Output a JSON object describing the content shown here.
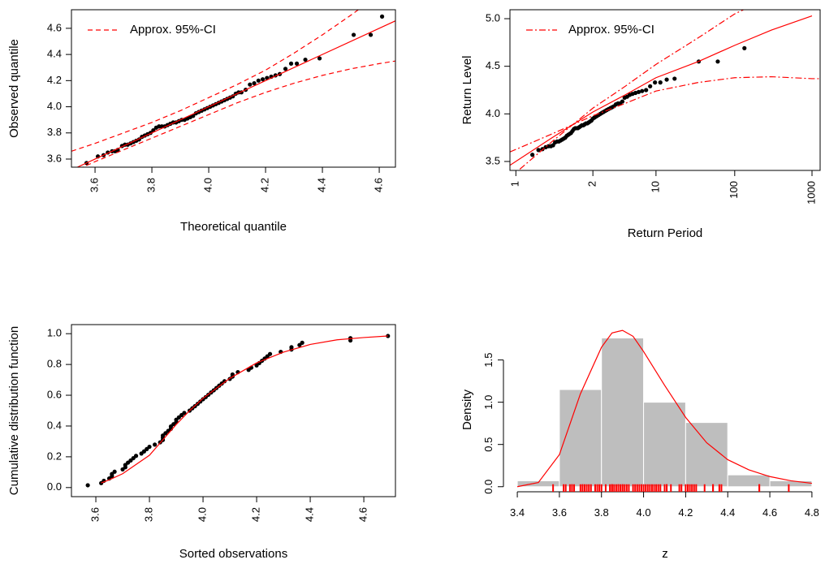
{
  "chart_data": [
    {
      "type": "scatter",
      "xlabel": "Theoretical quantile",
      "ylabel": "Observed quantile",
      "xlim": [
        3.517,
        4.657
      ],
      "ylim": [
        3.538,
        4.742
      ],
      "xticks": [
        3.6,
        3.8,
        {
          "value": 4,
          "label": "4.0"
        },
        4.2,
        4.4,
        4.6
      ],
      "yticks": [
        3.6,
        3.8,
        {
          "value": 4,
          "label": "4.0"
        },
        4.2,
        4.4,
        4.6
      ],
      "legend": "topleft",
      "series": [
        {
          "kind": "points",
          "color": "#000000",
          "x": [
            3.57,
            3.61,
            3.63,
            3.645,
            3.66,
            3.67,
            3.68,
            3.695,
            3.705,
            3.715,
            3.725,
            3.735,
            3.745,
            3.755,
            3.765,
            3.775,
            3.785,
            3.795,
            3.805,
            3.815,
            3.825,
            3.835,
            3.845,
            3.855,
            3.865,
            3.875,
            3.885,
            3.895,
            3.905,
            3.915,
            3.925,
            3.935,
            3.945,
            3.955,
            3.965,
            3.975,
            3.985,
            3.995,
            4.005,
            4.015,
            4.025,
            4.035,
            4.045,
            4.055,
            4.065,
            4.075,
            4.085,
            4.095,
            4.105,
            4.115,
            4.13,
            4.145,
            4.16,
            4.175,
            4.19,
            4.205,
            4.22,
            4.235,
            4.25,
            4.27,
            4.29,
            4.31,
            4.34,
            4.39,
            4.51,
            4.57,
            4.61
          ],
          "values": [
            3.57,
            3.62,
            3.63,
            3.65,
            3.66,
            3.66,
            3.67,
            3.7,
            3.71,
            3.71,
            3.72,
            3.73,
            3.74,
            3.75,
            3.77,
            3.78,
            3.79,
            3.8,
            3.82,
            3.84,
            3.85,
            3.85,
            3.85,
            3.86,
            3.87,
            3.88,
            3.88,
            3.89,
            3.9,
            3.9,
            3.91,
            3.92,
            3.93,
            3.95,
            3.96,
            3.97,
            3.98,
            3.99,
            4.0,
            4.01,
            4.02,
            4.03,
            4.04,
            4.05,
            4.06,
            4.07,
            4.08,
            4.1,
            4.11,
            4.11,
            4.13,
            4.17,
            4.18,
            4.2,
            4.21,
            4.22,
            4.23,
            4.24,
            4.25,
            4.29,
            4.33,
            4.33,
            4.36,
            4.37,
            4.55,
            4.55,
            4.69
          ]
        },
        {
          "kind": "line",
          "style": "solid",
          "color": "#ff0000",
          "x": [
            3.517,
            4.657
          ],
          "values": [
            3.517,
            4.657
          ]
        },
        {
          "name": "Approx. 95%-CI",
          "kind": "line",
          "style": "dashed",
          "color": "#ff0000",
          "x": [
            3.517,
            3.6,
            3.7,
            3.8,
            3.9,
            4.0,
            4.1,
            4.2,
            4.3,
            4.4,
            4.5,
            4.55
          ],
          "values": [
            3.66,
            3.72,
            3.8,
            3.88,
            3.97,
            4.07,
            4.17,
            4.28,
            4.41,
            4.55,
            4.7,
            4.78
          ]
        },
        {
          "kind": "line",
          "style": "dashed",
          "color": "#ff0000",
          "x": [
            3.517,
            3.6,
            3.7,
            3.8,
            3.9,
            4.0,
            4.1,
            4.2,
            4.3,
            4.4,
            4.5,
            4.6,
            4.657
          ],
          "values": [
            3.5,
            3.58,
            3.67,
            3.76,
            3.85,
            3.94,
            4.03,
            4.11,
            4.18,
            4.24,
            4.29,
            4.33,
            4.35
          ]
        }
      ]
    },
    {
      "type": "scatter",
      "xlabel": "Return Period",
      "ylabel": "Return Level",
      "xscale": "log",
      "xlim": [
        0.1213,
        1274
      ],
      "ylim": [
        3.406,
        5.094
      ],
      "xticks": [
        {
          "value": 0.1448,
          "label": "1"
        },
        {
          "value": 1.4427,
          "label": "2"
        },
        {
          "value": 9.4912,
          "label": "10"
        },
        {
          "value": 99.499,
          "label": "100"
        },
        {
          "value": 999.5,
          "label": "1000"
        }
      ],
      "yticks": [
        3.5,
        {
          "value": 4,
          "label": "4.0"
        },
        4.5,
        {
          "value": 5,
          "label": "5.0"
        }
      ],
      "legend": "topleft",
      "series": [
        {
          "kind": "points",
          "color": "#000000",
          "x": [
            0.237,
            0.284,
            0.32,
            0.353,
            0.383,
            0.412,
            0.44,
            0.467,
            0.495,
            0.522,
            0.549,
            0.576,
            0.604,
            0.633,
            0.662,
            0.691,
            0.721,
            0.752,
            0.784,
            0.817,
            0.851,
            0.886,
            0.922,
            0.96,
            0.999,
            1.04,
            1.083,
            1.127,
            1.173,
            1.222,
            1.273,
            1.326,
            1.383,
            1.443,
            1.506,
            1.573,
            1.644,
            1.719,
            1.8,
            1.885,
            1.977,
            2.076,
            2.181,
            2.296,
            2.424,
            2.56,
            2.706,
            2.869,
            3.052,
            3.25,
            3.477,
            3.723,
            4.008,
            4.336,
            4.708,
            5.14,
            5.66,
            6.27,
            7.062,
            7.97,
            9.21,
            10.81,
            13.07,
            16.53,
            34,
            60,
            133
          ],
          "values": [
            3.57,
            3.62,
            3.63,
            3.65,
            3.66,
            3.66,
            3.67,
            3.7,
            3.71,
            3.71,
            3.72,
            3.73,
            3.74,
            3.75,
            3.77,
            3.78,
            3.79,
            3.8,
            3.82,
            3.84,
            3.85,
            3.85,
            3.85,
            3.86,
            3.87,
            3.88,
            3.88,
            3.89,
            3.9,
            3.9,
            3.91,
            3.92,
            3.93,
            3.95,
            3.96,
            3.97,
            3.98,
            3.99,
            4.0,
            4.01,
            4.02,
            4.03,
            4.04,
            4.05,
            4.06,
            4.07,
            4.08,
            4.1,
            4.11,
            4.11,
            4.13,
            4.17,
            4.18,
            4.2,
            4.21,
            4.22,
            4.23,
            4.24,
            4.25,
            4.29,
            4.33,
            4.33,
            4.36,
            4.37,
            4.55,
            4.55,
            4.69
          ]
        },
        {
          "kind": "line",
          "style": "solid",
          "color": "#ff0000",
          "x": [
            0.1213,
            0.428,
            1.4427,
            3.79,
            9.49,
            33.6,
            99.5,
            297.6,
            999.5
          ],
          "values": [
            3.46,
            3.75,
            4.02,
            4.2,
            4.38,
            4.55,
            4.72,
            4.88,
            5.03
          ]
        },
        {
          "name": "Approx. 95%-CI",
          "kind": "line",
          "style": "dotdash",
          "color": "#ff0000",
          "x": [
            0.1213,
            0.428,
            1.4427,
            3.79,
            9.49,
            33.6,
            99.5,
            297.6,
            999.5,
            1274
          ],
          "values": [
            3.6,
            3.79,
            3.98,
            4.11,
            4.24,
            4.33,
            4.38,
            4.39,
            4.37,
            4.37
          ]
        },
        {
          "kind": "line",
          "style": "dotdash",
          "color": "#ff0000",
          "x": [
            0.1213,
            0.428,
            1.4427,
            3.79,
            9.49,
            33.6,
            99.5,
            180
          ],
          "values": [
            3.33,
            3.71,
            4.06,
            4.29,
            4.52,
            4.8,
            5.05,
            5.15
          ]
        }
      ]
    },
    {
      "type": "scatter",
      "xlabel": "Sorted observations",
      "ylabel": "Cumulative distribution function",
      "xlim": [
        3.509,
        4.718
      ],
      "ylim": [
        -0.059,
        1.059
      ],
      "xticks": [
        3.6,
        3.8,
        {
          "value": 4,
          "label": "4.0"
        },
        4.2,
        4.4,
        4.6
      ],
      "yticks": [
        {
          "value": 0,
          "label": "0.0"
        },
        0.2,
        0.4,
        0.6,
        0.8,
        {
          "value": 1,
          "label": "1.0"
        }
      ],
      "series": [
        {
          "kind": "points",
          "color": "#000000",
          "x": [
            3.57,
            3.62,
            3.63,
            3.65,
            3.66,
            3.66,
            3.67,
            3.7,
            3.71,
            3.71,
            3.72,
            3.73,
            3.74,
            3.75,
            3.77,
            3.78,
            3.79,
            3.8,
            3.82,
            3.84,
            3.85,
            3.85,
            3.85,
            3.86,
            3.87,
            3.88,
            3.88,
            3.89,
            3.9,
            3.9,
            3.91,
            3.92,
            3.93,
            3.95,
            3.96,
            3.97,
            3.98,
            3.99,
            4.0,
            4.01,
            4.02,
            4.03,
            4.04,
            4.05,
            4.06,
            4.07,
            4.08,
            4.1,
            4.11,
            4.11,
            4.13,
            4.17,
            4.18,
            4.2,
            4.21,
            4.22,
            4.23,
            4.24,
            4.25,
            4.29,
            4.33,
            4.33,
            4.36,
            4.37,
            4.55,
            4.55,
            4.69
          ],
          "values": [
            0.015,
            0.029,
            0.044,
            0.059,
            0.074,
            0.088,
            0.103,
            0.118,
            0.132,
            0.147,
            0.162,
            0.176,
            0.191,
            0.206,
            0.221,
            0.235,
            0.25,
            0.265,
            0.279,
            0.294,
            0.309,
            0.324,
            0.338,
            0.353,
            0.368,
            0.382,
            0.397,
            0.412,
            0.426,
            0.441,
            0.456,
            0.471,
            0.485,
            0.5,
            0.515,
            0.529,
            0.544,
            0.559,
            0.574,
            0.588,
            0.603,
            0.618,
            0.632,
            0.647,
            0.662,
            0.676,
            0.691,
            0.706,
            0.721,
            0.735,
            0.75,
            0.765,
            0.779,
            0.794,
            0.809,
            0.824,
            0.838,
            0.853,
            0.868,
            0.882,
            0.897,
            0.912,
            0.926,
            0.941,
            0.956,
            0.971,
            0.985
          ]
        },
        {
          "kind": "line",
          "style": "solid",
          "color": "#ff0000",
          "x": [
            3.62,
            3.65,
            3.7,
            3.75,
            3.8,
            3.85,
            3.9,
            3.95,
            4.0,
            4.1,
            4.2,
            4.3,
            4.4,
            4.5,
            4.6,
            4.69
          ],
          "values": [
            0.03,
            0.05,
            0.09,
            0.15,
            0.21,
            0.31,
            0.41,
            0.5,
            0.58,
            0.71,
            0.81,
            0.88,
            0.93,
            0.96,
            0.975,
            0.985
          ]
        }
      ]
    },
    {
      "type": "histogram",
      "xlabel": "z",
      "ylabel": "Density",
      "xlim": [
        3.365,
        4.839
      ],
      "ylim": [
        -0.06,
        1.88
      ],
      "xticks": [
        3.4,
        3.6,
        3.8,
        {
          "value": 4,
          "label": "4.0"
        },
        4.2,
        4.4,
        4.6,
        4.8
      ],
      "yticks": [
        {
          "value": 0,
          "label": "0.0"
        },
        0.5,
        {
          "value": 1,
          "label": "1.0"
        },
        1.5
      ],
      "bins": [
        3.4,
        3.6,
        3.8,
        4.0,
        4.2,
        4.4,
        4.6,
        4.8
      ],
      "values": [
        0.07,
        1.15,
        1.76,
        1.0,
        0.76,
        0.14,
        0.07
      ],
      "color": "#bebebe",
      "rug": [
        3.57,
        3.62,
        3.63,
        3.65,
        3.66,
        3.66,
        3.67,
        3.7,
        3.71,
        3.71,
        3.72,
        3.73,
        3.74,
        3.75,
        3.77,
        3.78,
        3.79,
        3.8,
        3.82,
        3.84,
        3.85,
        3.85,
        3.85,
        3.86,
        3.87,
        3.88,
        3.88,
        3.89,
        3.9,
        3.9,
        3.91,
        3.92,
        3.93,
        3.95,
        3.96,
        3.97,
        3.98,
        3.99,
        4.0,
        4.01,
        4.02,
        4.03,
        4.04,
        4.05,
        4.06,
        4.07,
        4.08,
        4.1,
        4.11,
        4.11,
        4.13,
        4.17,
        4.18,
        4.2,
        4.21,
        4.22,
        4.23,
        4.24,
        4.25,
        4.29,
        4.33,
        4.33,
        4.36,
        4.37,
        4.55,
        4.55,
        4.69
      ],
      "rug_color": "#ff0000",
      "series": [
        {
          "kind": "line",
          "style": "solid",
          "color": "#ff0000",
          "x": [
            3.4,
            3.5,
            3.6,
            3.7,
            3.8,
            3.85,
            3.9,
            3.95,
            4.0,
            4.1,
            4.2,
            4.3,
            4.4,
            4.5,
            4.6,
            4.7,
            4.8
          ],
          "values": [
            0.0,
            0.05,
            0.38,
            1.1,
            1.65,
            1.82,
            1.85,
            1.78,
            1.6,
            1.2,
            0.82,
            0.52,
            0.32,
            0.2,
            0.12,
            0.07,
            0.04
          ]
        }
      ]
    }
  ]
}
